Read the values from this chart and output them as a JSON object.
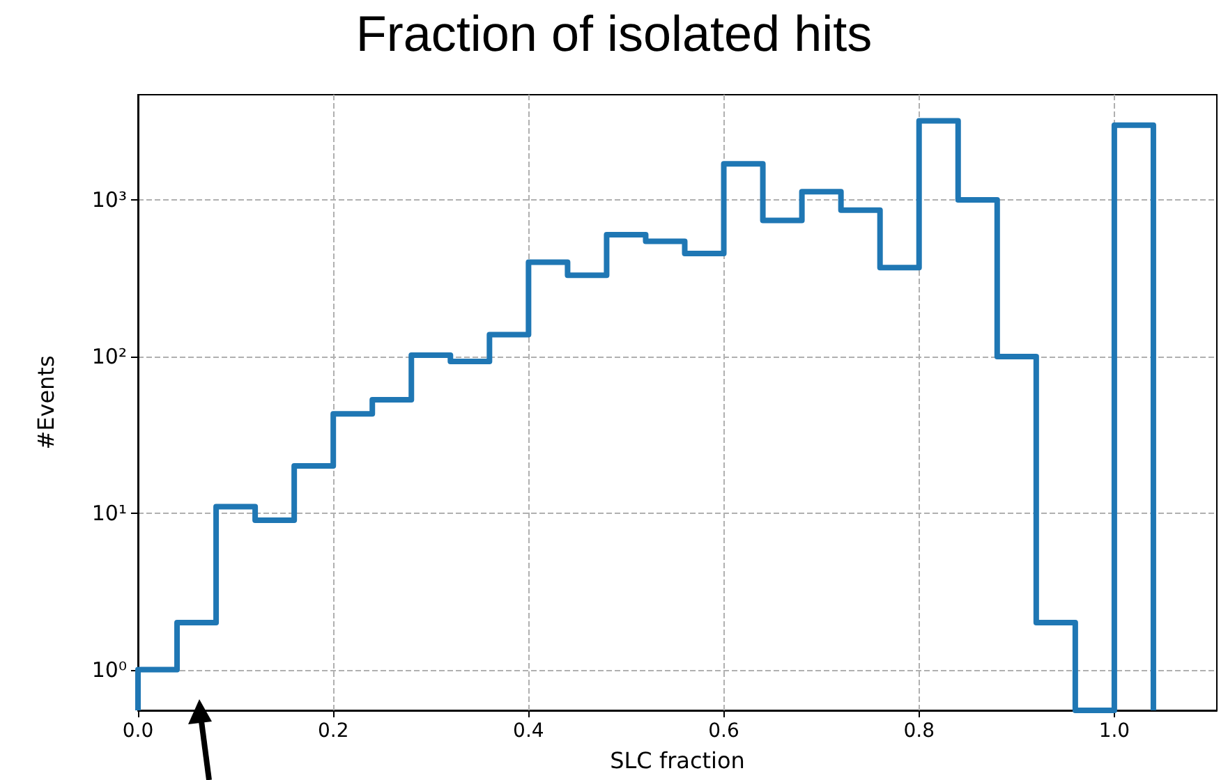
{
  "chart_data": {
    "type": "histogram",
    "title": "Fraction of isolated hits",
    "xlabel": "SLC fraction",
    "ylabel": "#Events",
    "bins": [
      0,
      0.04,
      0.08,
      0.12,
      0.16,
      0.2,
      0.24,
      0.28,
      0.32,
      0.36,
      0.4,
      0.44,
      0.48,
      0.52,
      0.56,
      0.6,
      0.64,
      0.68,
      0.72,
      0.76,
      0.8,
      0.84,
      0.88,
      0.92,
      0.96,
      1.0,
      1.04
    ],
    "values": [
      1,
      2,
      11,
      9,
      20,
      43,
      53,
      102,
      93,
      138,
      400,
      330,
      600,
      545,
      455,
      1700,
      740,
      1130,
      860,
      370,
      3200,
      1000,
      100,
      2,
      null,
      3000
    ],
    "color": "#1f77b4",
    "log": "y",
    "grid": true,
    "xlim": [
      0,
      1.105
    ],
    "xticks": [
      {
        "value": 0,
        "label": "0.0"
      },
      {
        "value": 0.2,
        "label": "0.2"
      },
      {
        "value": 0.4,
        "label": "0.4"
      },
      {
        "value": 0.6,
        "label": "0.6"
      },
      {
        "value": 0.8,
        "label": "0.8"
      },
      {
        "value": 1,
        "label": "1.0"
      }
    ],
    "ylim": [
      0.55,
      4700
    ],
    "yticks": [
      {
        "value": 1,
        "label": "10⁰"
      },
      {
        "value": 10,
        "label": "10¹"
      },
      {
        "value": 100,
        "label": "10²"
      },
      {
        "value": 1000,
        "label": "10³"
      }
    ]
  }
}
